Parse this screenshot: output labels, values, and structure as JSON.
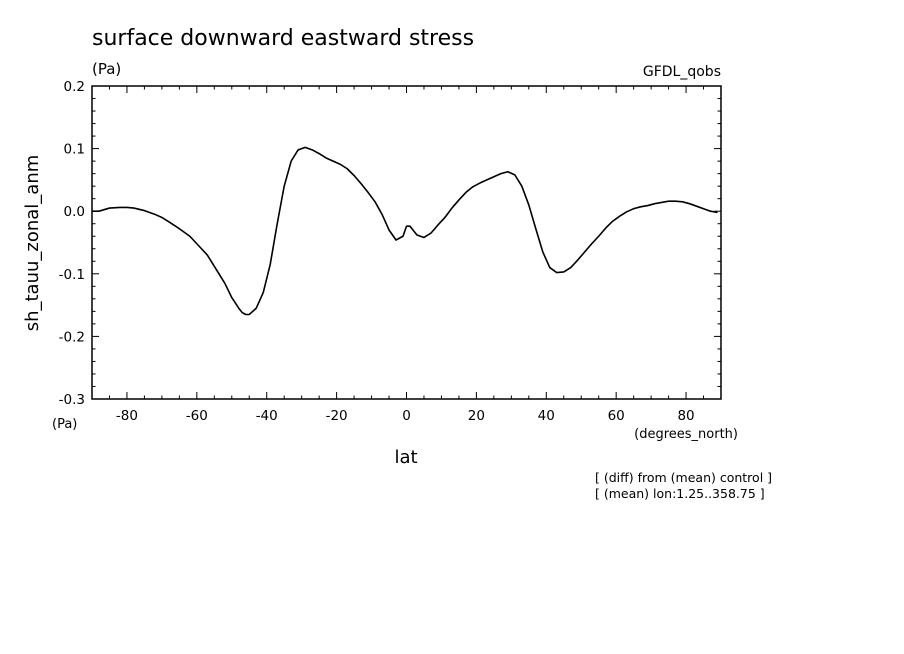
{
  "chart_data": {
    "type": "line",
    "title": "surface downward eastward stress",
    "units": "(Pa)",
    "model_label": "GFDL_qobs",
    "ylabel": "sh_tauu_zonal_anm",
    "y_units_label": "(Pa)",
    "xlabel": "lat",
    "x_units_label": "(degrees_north)",
    "xlim": [
      -90,
      90
    ],
    "ylim": [
      -0.3,
      0.2
    ],
    "x_ticks": [
      -80,
      -60,
      -40,
      -20,
      0,
      20,
      40,
      60,
      80
    ],
    "x_tick_labels": [
      "-80",
      "-60",
      "-40",
      "-20",
      "0",
      "20",
      "40",
      "60",
      "80"
    ],
    "y_ticks": [
      -0.3,
      -0.2,
      -0.1,
      0.0,
      0.1,
      0.2
    ],
    "y_tick_labels": [
      "-0.3",
      "-0.2",
      "-0.1",
      "0.0",
      "0.1",
      "0.2"
    ],
    "grid": false,
    "series": [
      {
        "x": [
          -90,
          -88,
          -85,
          -82,
          -80,
          -78,
          -75,
          -72,
          -70,
          -68,
          -65,
          -62,
          -60,
          -57,
          -55,
          -52,
          -50,
          -48,
          -47,
          -46,
          -45,
          -43,
          -41,
          -39,
          -37,
          -35,
          -33,
          -31,
          -29,
          -27,
          -25,
          -23,
          -21,
          -19,
          -17,
          -15,
          -13,
          -11,
          -9,
          -7,
          -5,
          -3,
          -1,
          0,
          1,
          3,
          5,
          7,
          9,
          11,
          13,
          15,
          17,
          19,
          21,
          23,
          25,
          27,
          29,
          31,
          33,
          35,
          37,
          39,
          41,
          43,
          45,
          47,
          49,
          51,
          53,
          55,
          57,
          59,
          61,
          63,
          65,
          67,
          69,
          71,
          73,
          75,
          77,
          79,
          81,
          83,
          85,
          87,
          89
        ],
        "values": [
          0.0,
          0.0,
          0.005,
          0.006,
          0.006,
          0.005,
          0.001,
          -0.005,
          -0.01,
          -0.017,
          -0.028,
          -0.04,
          -0.052,
          -0.07,
          -0.088,
          -0.115,
          -0.138,
          -0.155,
          -0.162,
          -0.165,
          -0.165,
          -0.155,
          -0.13,
          -0.085,
          -0.02,
          0.04,
          0.08,
          0.098,
          0.102,
          0.098,
          0.092,
          0.085,
          0.08,
          0.075,
          0.068,
          0.057,
          0.044,
          0.03,
          0.015,
          -0.005,
          -0.03,
          -0.046,
          -0.04,
          -0.024,
          -0.024,
          -0.038,
          -0.042,
          -0.035,
          -0.022,
          -0.01,
          0.005,
          0.018,
          0.03,
          0.039,
          0.045,
          0.05,
          0.055,
          0.06,
          0.063,
          0.058,
          0.04,
          0.01,
          -0.028,
          -0.065,
          -0.09,
          -0.098,
          -0.097,
          -0.09,
          -0.078,
          -0.065,
          -0.052,
          -0.04,
          -0.027,
          -0.016,
          -0.008,
          -0.001,
          0.004,
          0.007,
          0.009,
          0.012,
          0.014,
          0.016,
          0.016,
          0.015,
          0.012,
          0.008,
          0.004,
          0.0,
          -0.002
        ]
      }
    ]
  },
  "footnotes": [
    "[ (diff) from (mean) control ]",
    "[ (mean) lon:1.25..358.75 ]"
  ]
}
